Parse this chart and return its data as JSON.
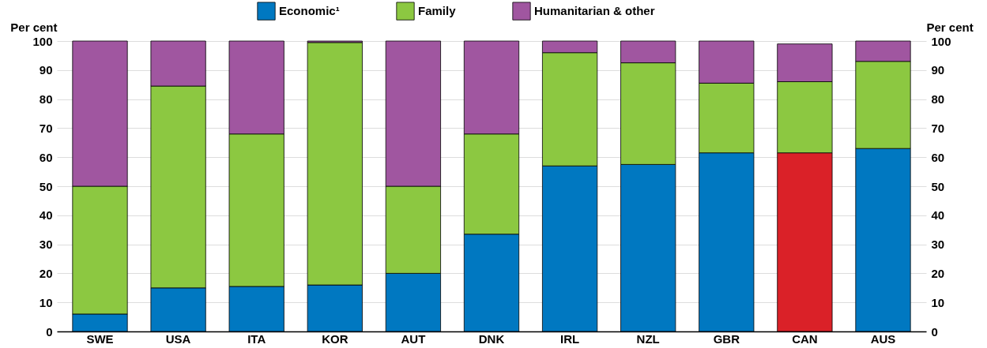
{
  "chart_data": {
    "type": "bar",
    "stacked": true,
    "categories": [
      "SWE",
      "USA",
      "ITA",
      "KOR",
      "AUT",
      "DNK",
      "IRL",
      "NZL",
      "GBR",
      "CAN",
      "AUS"
    ],
    "series": [
      {
        "name": "Economic¹",
        "color": "#0078c1",
        "colors": [
          "#0078c1",
          "#0078c1",
          "#0078c1",
          "#0078c1",
          "#0078c1",
          "#0078c1",
          "#0078c1",
          "#0078c1",
          "#0078c1",
          "#da2128",
          "#0078c1"
        ],
        "values": [
          6,
          15,
          15.5,
          16,
          20,
          33.5,
          57,
          57.5,
          61.5,
          61.5,
          63
        ]
      },
      {
        "name": "Family",
        "color": "#8cc841",
        "values": [
          44,
          69.5,
          52.5,
          83.5,
          30,
          34.5,
          39,
          35,
          24,
          24.5,
          30
        ]
      },
      {
        "name": "Humanitarian & other",
        "color": "#a056a0",
        "values": [
          50,
          15.5,
          32,
          0.5,
          50,
          32,
          4,
          7.5,
          14.5,
          13,
          7
        ]
      }
    ],
    "ylabel": "Per cent",
    "y2label": "Per cent",
    "ylim": [
      0,
      100
    ],
    "yticks": [
      0,
      10,
      20,
      30,
      40,
      50,
      60,
      70,
      80,
      90,
      100
    ],
    "y2lim": [
      0,
      100
    ],
    "y2ticks": [
      0,
      10,
      20,
      30,
      40,
      50,
      60,
      70,
      80,
      90,
      100
    ],
    "grid": "y",
    "legend": "top"
  }
}
